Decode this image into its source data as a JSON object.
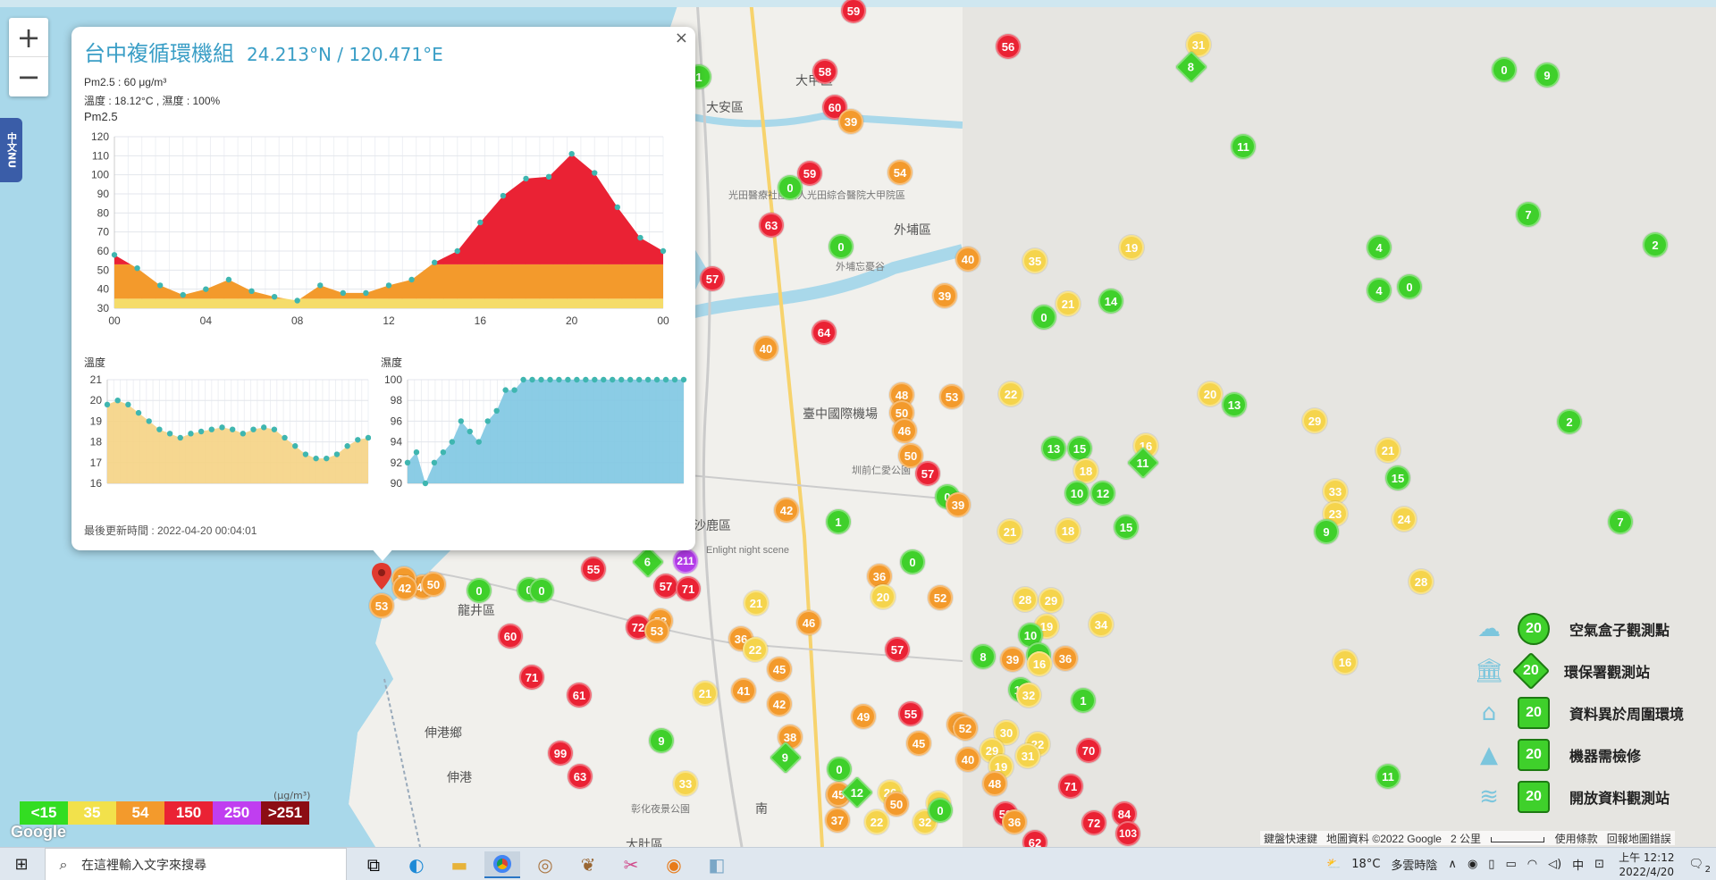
{
  "zoom": {
    "plus": "+",
    "minus": "−"
  },
  "side_tab": {
    "label": "中文NU"
  },
  "popup": {
    "close": "×",
    "title": "台中複循環機組",
    "coords": "24.213°N / 120.471°E",
    "pm_line": "Pm2.5 : 60 μg/m³",
    "env_line": "溫度 : 18.12°C , 濕度 : 100%",
    "chart_title": "Pm2.5",
    "temp_title": "溫度",
    "hum_title": "濕度",
    "updated": "最後更新時間 : 2022-04-20 00:04:01"
  },
  "chart_data": [
    {
      "type": "area",
      "title": "Pm2.5",
      "x": [
        "00",
        "01",
        "02",
        "03",
        "04",
        "05",
        "06",
        "07",
        "08",
        "09",
        "10",
        "11",
        "12",
        "13",
        "14",
        "15",
        "16",
        "17",
        "18",
        "19",
        "20",
        "21",
        "22",
        "23",
        "00"
      ],
      "x_ticks": [
        "00",
        "04",
        "08",
        "12",
        "16",
        "20",
        "00"
      ],
      "values": [
        58,
        51,
        42,
        37,
        40,
        45,
        39,
        36,
        34,
        42,
        38,
        38,
        42,
        45,
        54,
        60,
        75,
        89,
        98,
        99,
        111,
        101,
        83,
        67,
        60
      ],
      "ylim": [
        30,
        120
      ],
      "yticks": [
        30,
        40,
        50,
        60,
        70,
        80,
        90,
        100,
        110,
        120
      ],
      "bands": [
        {
          "max": 35,
          "color": "#f5dc6a"
        },
        {
          "max": 53,
          "color": "#f39a2c"
        },
        {
          "max": 150,
          "color": "#ea2234"
        }
      ]
    },
    {
      "type": "area",
      "title": "溫度",
      "values": [
        19.8,
        20.0,
        19.8,
        19.4,
        19.0,
        18.6,
        18.4,
        18.2,
        18.4,
        18.5,
        18.6,
        18.7,
        18.6,
        18.4,
        18.6,
        18.7,
        18.6,
        18.2,
        17.8,
        17.4,
        17.2,
        17.2,
        17.4,
        17.8,
        18.1,
        18.2
      ],
      "ylim": [
        16,
        21
      ],
      "yticks": [
        16,
        17,
        18,
        19,
        20,
        21
      ],
      "color": "#f5d384"
    },
    {
      "type": "area",
      "title": "濕度",
      "values": [
        92,
        93,
        90,
        92,
        93,
        94,
        96,
        95,
        94,
        96,
        97,
        99,
        99,
        100,
        100,
        100,
        100,
        100,
        100,
        100,
        100,
        100,
        100,
        100,
        100,
        100,
        100,
        100,
        100,
        100,
        100,
        100
      ],
      "ylim": [
        90,
        100
      ],
      "yticks": [
        90,
        92,
        94,
        96,
        98,
        100
      ],
      "color": "#7ec6e2"
    }
  ],
  "places": [
    {
      "name": "大甲區"
    },
    {
      "name": "大安區"
    },
    {
      "name": "外埔區"
    },
    {
      "name": "臺中國際機場"
    },
    {
      "name": "沙鹿區"
    },
    {
      "name": "龍井區"
    },
    {
      "name": "伸港鄉"
    },
    {
      "name": "伸港"
    },
    {
      "name": "大肚區"
    },
    {
      "name": "南"
    },
    {
      "name": "Enlight night scene"
    },
    {
      "name": "光田醫療社團法人光田綜合醫院大甲院區"
    },
    {
      "name": "外埔忘憂谷"
    },
    {
      "name": "圳前仁愛公園"
    },
    {
      "name": "彰化夜景公園"
    }
  ],
  "markers": [
    {
      "v": "59",
      "c": "r"
    },
    {
      "v": "58",
      "c": "r"
    },
    {
      "v": "60",
      "c": "r"
    },
    {
      "v": "39",
      "c": "o"
    },
    {
      "v": "59",
      "c": "r"
    },
    {
      "v": "0",
      "c": "g"
    },
    {
      "v": "54",
      "c": "o"
    },
    {
      "v": "63",
      "c": "r"
    },
    {
      "v": "0",
      "c": "g"
    },
    {
      "v": "57",
      "c": "r"
    },
    {
      "v": "64",
      "c": "r"
    },
    {
      "v": "40",
      "c": "o"
    },
    {
      "v": "1",
      "c": "g"
    },
    {
      "v": "56",
      "c": "r"
    },
    {
      "v": "31",
      "c": "y"
    },
    {
      "v": "8",
      "c": "g",
      "d": true
    },
    {
      "v": "0",
      "c": "g"
    },
    {
      "v": "9",
      "c": "g"
    },
    {
      "v": "11",
      "c": "g"
    },
    {
      "v": "7",
      "c": "g"
    },
    {
      "v": "19",
      "c": "y"
    },
    {
      "v": "4",
      "c": "g"
    },
    {
      "v": "4",
      "c": "g"
    },
    {
      "v": "0",
      "c": "g"
    },
    {
      "v": "2",
      "c": "g"
    },
    {
      "v": "40",
      "c": "o"
    },
    {
      "v": "35",
      "c": "y"
    },
    {
      "v": "39",
      "c": "o"
    },
    {
      "v": "21",
      "c": "y"
    },
    {
      "v": "14",
      "c": "g"
    },
    {
      "v": "0",
      "c": "g"
    },
    {
      "v": "22",
      "c": "y"
    },
    {
      "v": "53",
      "c": "o"
    },
    {
      "v": "48",
      "c": "o"
    },
    {
      "v": "50",
      "c": "o"
    },
    {
      "v": "46",
      "c": "o"
    },
    {
      "v": "50",
      "c": "o"
    },
    {
      "v": "57",
      "c": "r"
    },
    {
      "v": "0",
      "c": "g"
    },
    {
      "v": "39",
      "c": "o"
    },
    {
      "v": "20",
      "c": "y"
    },
    {
      "v": "13",
      "c": "g"
    },
    {
      "v": "29",
      "c": "y"
    },
    {
      "v": "2",
      "c": "g"
    },
    {
      "v": "13",
      "c": "g"
    },
    {
      "v": "15",
      "c": "g"
    },
    {
      "v": "18",
      "c": "y"
    },
    {
      "v": "16",
      "c": "y"
    },
    {
      "v": "11",
      "c": "g",
      "d": true
    },
    {
      "v": "10",
      "c": "g"
    },
    {
      "v": "12",
      "c": "g"
    },
    {
      "v": "21",
      "c": "y"
    },
    {
      "v": "15",
      "c": "g"
    },
    {
      "v": "33",
      "c": "y"
    },
    {
      "v": "23",
      "c": "y"
    },
    {
      "v": "9",
      "c": "g"
    },
    {
      "v": "24",
      "c": "y"
    },
    {
      "v": "7",
      "c": "g"
    },
    {
      "v": "21",
      "c": "y"
    },
    {
      "v": "18",
      "c": "y"
    },
    {
      "v": "15",
      "c": "g"
    },
    {
      "v": "1",
      "c": "g"
    },
    {
      "v": "42",
      "c": "o"
    },
    {
      "v": "0",
      "c": "g"
    },
    {
      "v": "36",
      "c": "o"
    },
    {
      "v": "20",
      "c": "y"
    },
    {
      "v": "52",
      "c": "o"
    },
    {
      "v": "28",
      "c": "y"
    },
    {
      "v": "29",
      "c": "y"
    },
    {
      "v": "19",
      "c": "y"
    },
    {
      "v": "10",
      "c": "g"
    },
    {
      "v": "9",
      "c": "g"
    },
    {
      "v": "34",
      "c": "y"
    },
    {
      "v": "28",
      "c": "y"
    },
    {
      "v": "16",
      "c": "y"
    },
    {
      "v": "6",
      "c": "g",
      "d": true
    },
    {
      "v": "211",
      "c": "p"
    },
    {
      "v": "57",
      "c": "r"
    },
    {
      "v": "71",
      "c": "r"
    },
    {
      "v": "55",
      "c": "r"
    },
    {
      "v": "0",
      "c": "g"
    },
    {
      "v": "42",
      "c": "o"
    },
    {
      "v": "50",
      "c": "o"
    },
    {
      "v": "53",
      "c": "o"
    },
    {
      "v": "0",
      "c": "g"
    },
    {
      "v": "60",
      "c": "r"
    },
    {
      "v": "72",
      "c": "r"
    },
    {
      "v": "53",
      "c": "o"
    },
    {
      "v": "21",
      "c": "y"
    },
    {
      "v": "36",
      "c": "o"
    },
    {
      "v": "22",
      "c": "y"
    },
    {
      "v": "46",
      "c": "o"
    },
    {
      "v": "57",
      "c": "r"
    },
    {
      "v": "71",
      "c": "r"
    },
    {
      "v": "61",
      "c": "r"
    },
    {
      "v": "99",
      "c": "r"
    },
    {
      "v": "63",
      "c": "r"
    },
    {
      "v": "9",
      "c": "g"
    },
    {
      "v": "33",
      "c": "y"
    },
    {
      "v": "21",
      "c": "y"
    },
    {
      "v": "41",
      "c": "o"
    },
    {
      "v": "45",
      "c": "o"
    },
    {
      "v": "42",
      "c": "o"
    },
    {
      "v": "38",
      "c": "o"
    },
    {
      "v": "9",
      "c": "g",
      "d": true
    },
    {
      "v": "0",
      "c": "g"
    },
    {
      "v": "40",
      "c": "o"
    },
    {
      "v": "8",
      "c": "g"
    },
    {
      "v": "39",
      "c": "o"
    },
    {
      "v": "16",
      "c": "y"
    },
    {
      "v": "36",
      "c": "o"
    },
    {
      "v": "10",
      "c": "g"
    },
    {
      "v": "32",
      "c": "y"
    },
    {
      "v": "1",
      "c": "g"
    },
    {
      "v": "47",
      "c": "o"
    },
    {
      "v": "52",
      "c": "o"
    },
    {
      "v": "49",
      "c": "o"
    },
    {
      "v": "55",
      "c": "r"
    },
    {
      "v": "45",
      "c": "o"
    },
    {
      "v": "30",
      "c": "y"
    },
    {
      "v": "29",
      "c": "y"
    },
    {
      "v": "22",
      "c": "y"
    },
    {
      "v": "19",
      "c": "y"
    },
    {
      "v": "31",
      "c": "y"
    },
    {
      "v": "70",
      "c": "r"
    },
    {
      "v": "40",
      "c": "o"
    },
    {
      "v": "45",
      "c": "o"
    },
    {
      "v": "12",
      "c": "g",
      "d": true
    },
    {
      "v": "26",
      "c": "y"
    },
    {
      "v": "50",
      "c": "o"
    },
    {
      "v": "31",
      "c": "y"
    },
    {
      "v": "48",
      "c": "o"
    },
    {
      "v": "71",
      "c": "r"
    },
    {
      "v": "37",
      "c": "o"
    },
    {
      "v": "22",
      "c": "y"
    },
    {
      "v": "32",
      "c": "y"
    },
    {
      "v": "59",
      "c": "r"
    },
    {
      "v": "36",
      "c": "o"
    },
    {
      "v": "72",
      "c": "r"
    },
    {
      "v": "84",
      "c": "r"
    },
    {
      "v": "103",
      "c": "r"
    },
    {
      "v": "62",
      "c": "r"
    },
    {
      "v": "11",
      "c": "g"
    },
    {
      "v": "0",
      "c": "g"
    }
  ],
  "popup_markers": [
    {
      "v": "53",
      "c": "o"
    },
    {
      "v": "42",
      "c": "o"
    },
    {
      "v": "50",
      "c": "o"
    },
    {
      "v": "0",
      "c": "g"
    }
  ],
  "aq_legend": [
    {
      "label": "<15",
      "color": "#33dd22"
    },
    {
      "label": "35",
      "color": "#f2e14b"
    },
    {
      "label": "54",
      "color": "#f39a2c"
    },
    {
      "label": "150",
      "color": "#ea2234"
    },
    {
      "label": "250",
      "color": "#c03ef0"
    },
    {
      "label": ">251",
      "color": "#8c0d14"
    }
  ],
  "aq_unit": "(μg/m³)",
  "google_logo": "Google",
  "icon_legend": [
    {
      "icon": "airbox-icon",
      "glyph": "☁",
      "value": "20",
      "shape": "circle",
      "label": "空氣盒子觀測點"
    },
    {
      "icon": "government-icon",
      "glyph": "🏛",
      "value": "20",
      "shape": "diamond",
      "label": "環保署觀測站"
    },
    {
      "icon": "house-icon",
      "glyph": "⌂",
      "value": "20",
      "shape": "house",
      "label": "資料異於周圍環境"
    },
    {
      "icon": "cone-icon",
      "glyph": "▲",
      "value": "20",
      "shape": "cone",
      "label": "機器需檢修"
    },
    {
      "icon": "open-data-icon",
      "glyph": "≋",
      "value": "20",
      "shape": "square",
      "label": "開放資料觀測站"
    }
  ],
  "attribution": {
    "shortcuts": "鍵盤快速鍵",
    "data": "地圖資料 ©2022 Google",
    "scale": "2 公里",
    "terms": "使用條款",
    "report": "回報地圖錯誤"
  },
  "taskbar": {
    "search_placeholder": "在這裡輸入文字來搜尋",
    "weather_temp": "18°C",
    "weather_desc": "多雲時陰",
    "ime": "中",
    "time": "上午 12:12",
    "date": "2022/4/20",
    "notify_count": "2"
  }
}
